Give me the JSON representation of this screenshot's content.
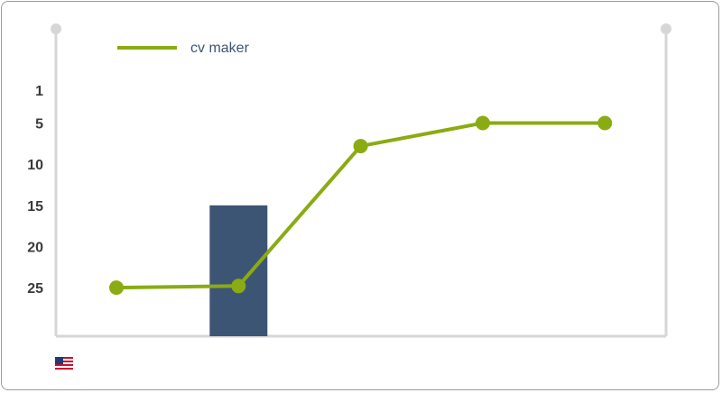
{
  "chart_data": {
    "type": "line",
    "y_axis": {
      "reversed": true,
      "range": [
        1,
        30
      ],
      "ticks": [
        1,
        5,
        10,
        15,
        20,
        25
      ]
    },
    "x": [
      1,
      2,
      3,
      4,
      5
    ],
    "series": [
      {
        "name": "cv maker",
        "type": "line",
        "color": "#8aab12",
        "values": [
          25,
          24.8,
          7.8,
          5,
          5
        ]
      }
    ],
    "bars": [
      {
        "x": 2,
        "from": 15,
        "to": 30,
        "color": "#3d5575"
      }
    ],
    "legend": {
      "position": "top-left",
      "label": "cv maker"
    },
    "grid": false
  },
  "footer": {
    "flag_icon": "us-flag-icon",
    "country": "US"
  }
}
